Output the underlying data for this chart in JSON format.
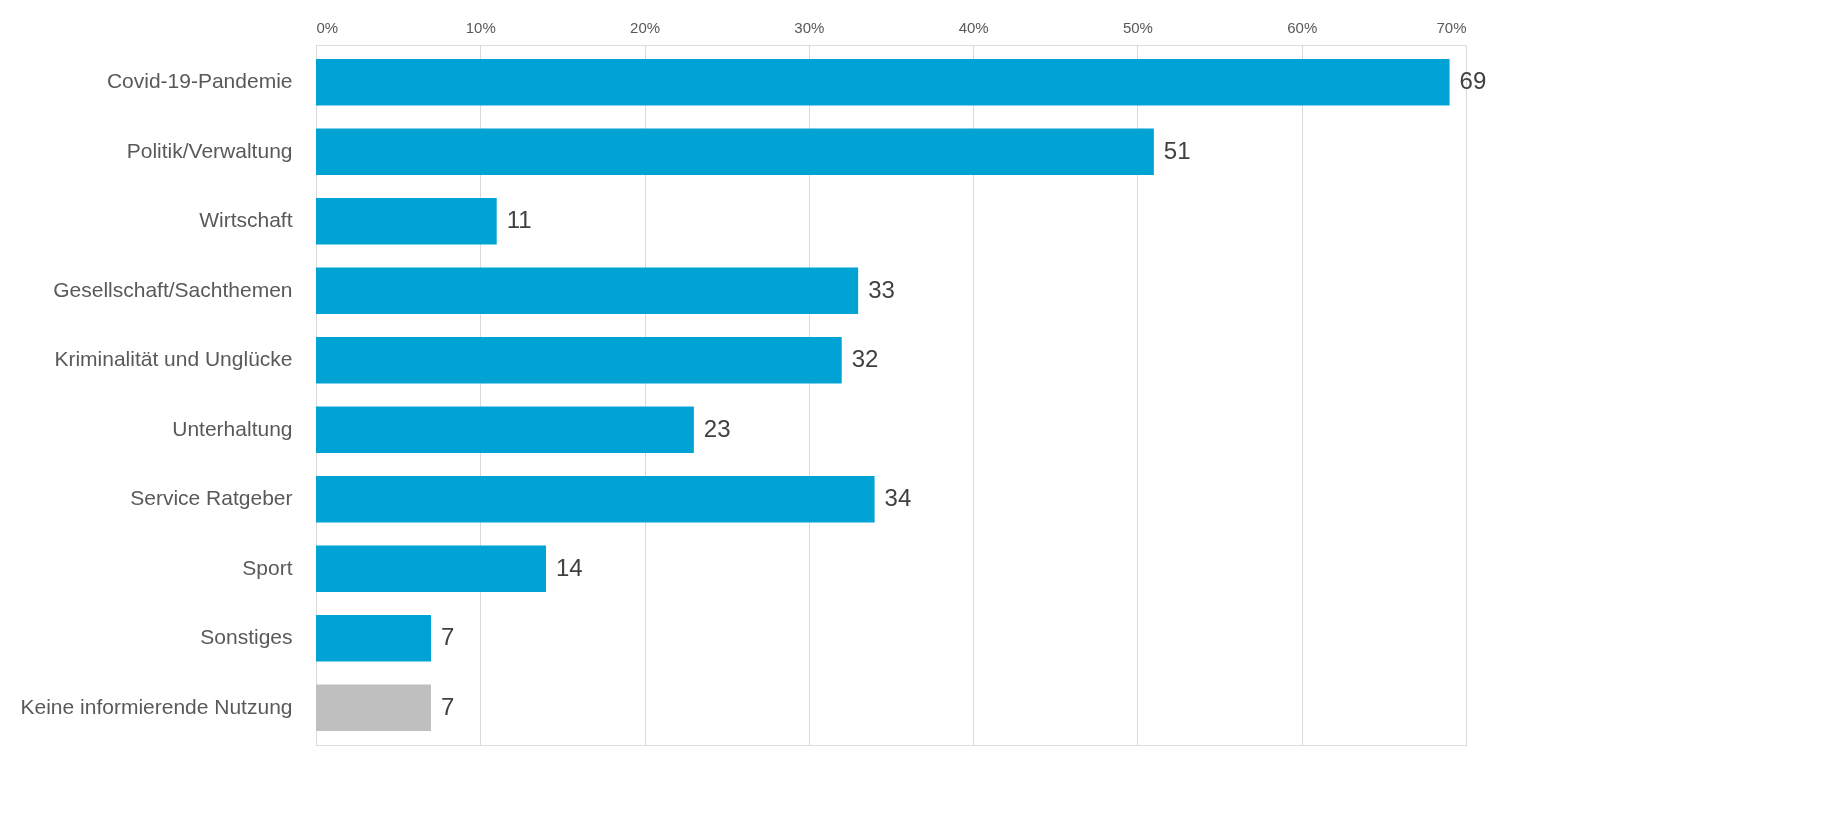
{
  "chart_data": {
    "type": "bar",
    "orientation": "horizontal",
    "categories": [
      "Covid-19-Pandemie",
      "Politik/Verwaltung",
      "Wirtschaft",
      "Gesellschaft/Sachthemen",
      "Kriminalität und Unglücke",
      "Unterhaltung",
      "Service Ratgeber",
      "Sport",
      "Sonstiges",
      "Keine informierende Nutzung"
    ],
    "values": [
      69,
      51,
      11,
      33,
      32,
      23,
      34,
      14,
      7,
      7
    ],
    "colors": [
      "#00a3d3",
      "#00a3d3",
      "#00a3d3",
      "#00a3d3",
      "#00a3d3",
      "#00a3d3",
      "#00a3d3",
      "#00a3d3",
      "#00a3d3",
      "#bfbfbf"
    ],
    "xlim": [
      0,
      70
    ],
    "xticks": [
      {
        "value": 0,
        "label": "0%"
      },
      {
        "value": 10,
        "label": "10%"
      },
      {
        "value": 20,
        "label": "20%"
      },
      {
        "value": 30,
        "label": "30%"
      },
      {
        "value": 40,
        "label": "40%"
      },
      {
        "value": 50,
        "label": "50%"
      },
      {
        "value": 60,
        "label": "60%"
      },
      {
        "value": 70,
        "label": "70%"
      }
    ],
    "grid": "x",
    "data_labels": true,
    "legend": false
  }
}
